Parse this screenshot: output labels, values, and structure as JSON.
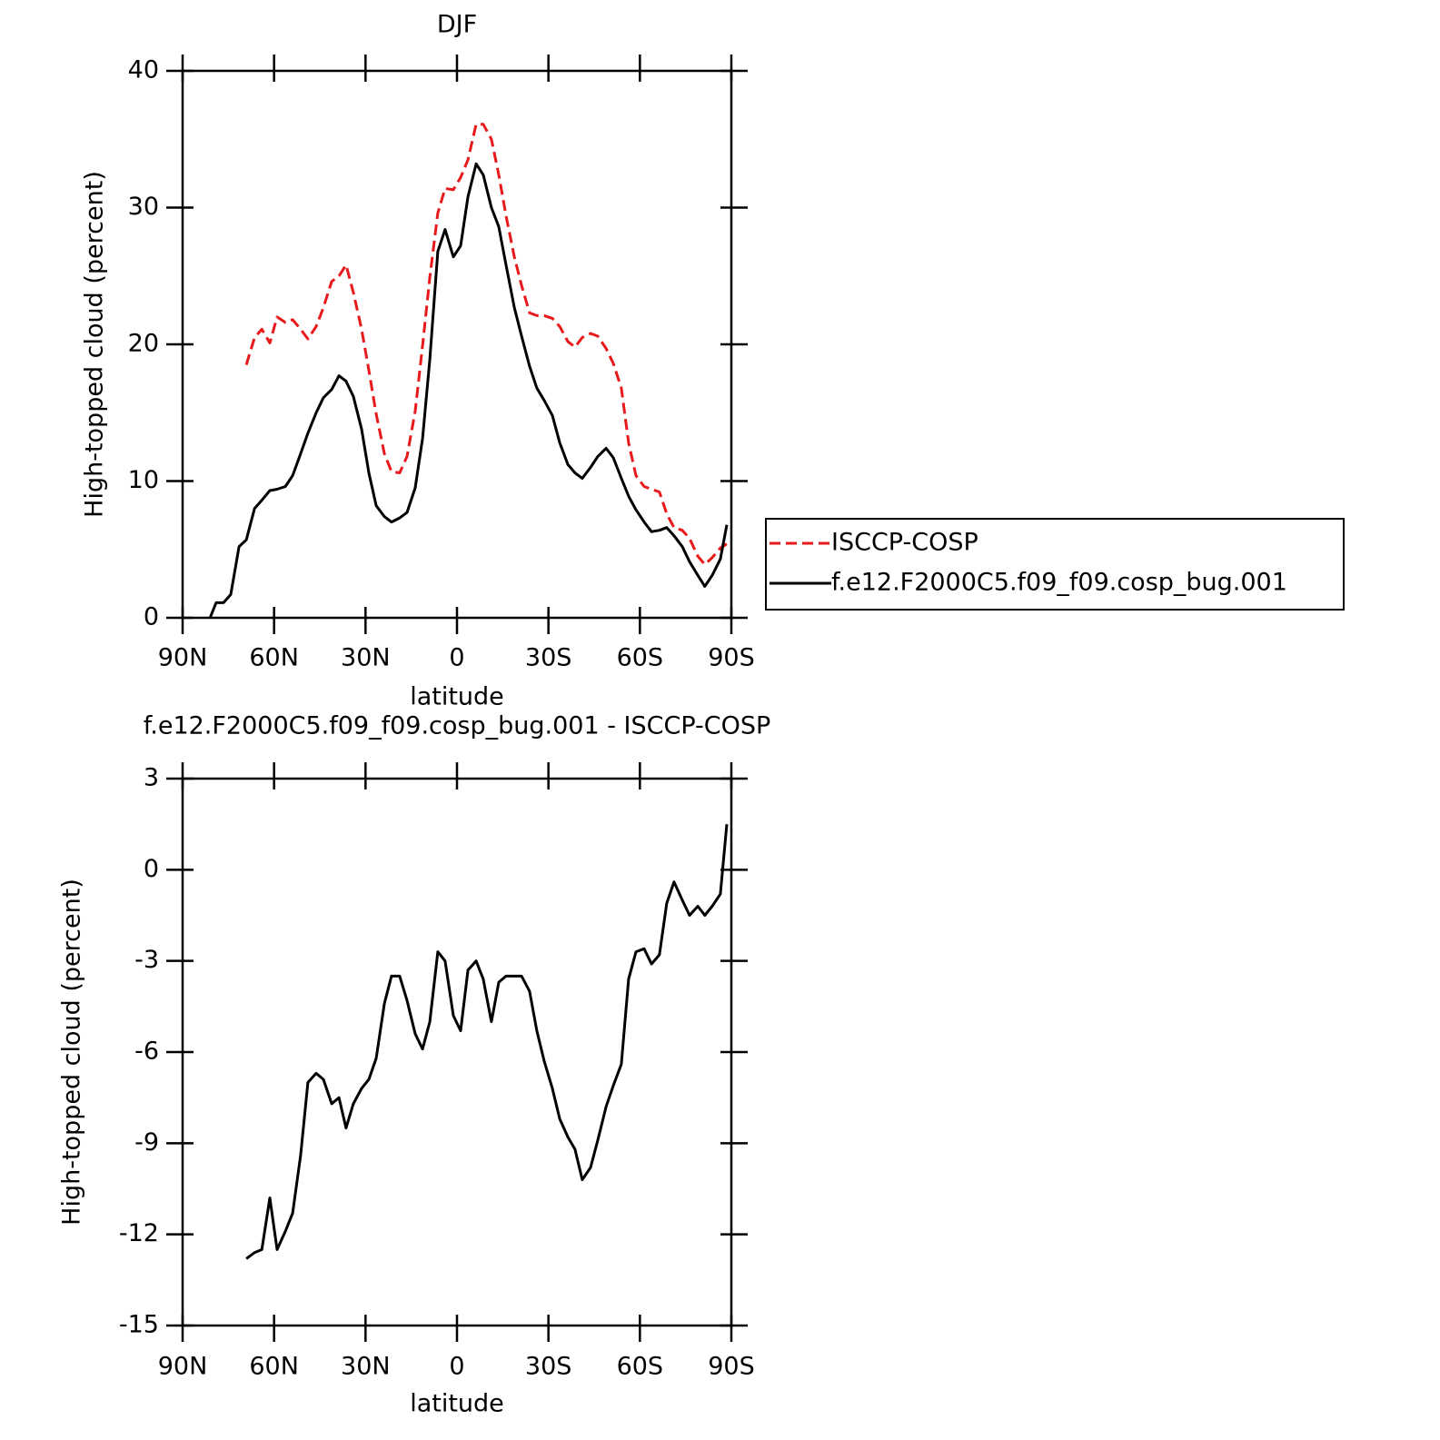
{
  "chart_data": [
    {
      "type": "line",
      "title": "DJF",
      "x_label": "latitude",
      "y_label": "High-topped cloud (percent)",
      "x": [
        81,
        79,
        76.6,
        74.2,
        71.5,
        69.1,
        66.4,
        64,
        61.4,
        59,
        56.3,
        53.9,
        51.3,
        48.9,
        46.2,
        43.8,
        41.1,
        38.7,
        36.4,
        34,
        31.3,
        28.9,
        26.5,
        23.8,
        21.5,
        18.8,
        16.4,
        13.7,
        11.3,
        8.9,
        6.3,
        3.9,
        1.2,
        -1.2,
        -3.6,
        -6.3,
        -8.6,
        -11.3,
        -13.7,
        -16.1,
        -18.8,
        -21.2,
        -23.8,
        -26.2,
        -28.6,
        -31.3,
        -33.7,
        -36.4,
        -38.7,
        -41.1,
        -43.8,
        -46.2,
        -48.9,
        -51.3,
        -53.9,
        -56.3,
        -58.7,
        -61.4,
        -63.8,
        -66.4,
        -68.8,
        -71.2,
        -73.9,
        -76.3,
        -79,
        -81.3,
        -83.7,
        -86.4,
        -88.5
      ],
      "series": [
        {
          "name": "ISCCP-COSP",
          "color": "#e8191b",
          "style": "dashed",
          "values": [
            null,
            null,
            null,
            null,
            null,
            18.5,
            20.5,
            21.1,
            20.1,
            22.0,
            21.6,
            21.8,
            21.1,
            20.4,
            21.3,
            22.7,
            24.6,
            25.0,
            25.8,
            23.8,
            21.1,
            18.1,
            14.9,
            12.0,
            10.7,
            10.6,
            11.8,
            15.1,
            19.9,
            24.9,
            29.6,
            31.4,
            31.3,
            32.2,
            33.5,
            36.1,
            36.1,
            35.0,
            32.4,
            29.4,
            26.4,
            24.3,
            22.3,
            22.1,
            22.1,
            21.9,
            21.3,
            20.2,
            19.8,
            20.5,
            20.8,
            20.6,
            19.7,
            18.6,
            16.8,
            12.8,
            10.4,
            9.6,
            9.4,
            9.2,
            7.6,
            6.6,
            6.4,
            5.8,
            4.5,
            3.9,
            4.4,
            5.1,
            5.4
          ]
        },
        {
          "name": "f.e12.F2000C5.f09_f09.cosp_bug.001",
          "color": "#000000",
          "style": "solid",
          "values": [
            0,
            1.1,
            1.1,
            1.7,
            5.2,
            5.7,
            8.0,
            8.6,
            9.3,
            9.4,
            9.6,
            10.4,
            12.0,
            13.5,
            15.0,
            16.1,
            16.7,
            17.7,
            17.3,
            16.2,
            13.8,
            10.6,
            8.2,
            7.4,
            7.0,
            7.3,
            7.7,
            9.5,
            13.1,
            18.9,
            26.8,
            28.4,
            26.4,
            27.2,
            30.8,
            33.2,
            32.4,
            30,
            28.6,
            25.8,
            22.7,
            20.6,
            18.4,
            16.8,
            15.9,
            14.8,
            12.8,
            11.2,
            10.6,
            10.2,
            11.0,
            11.8,
            12.4,
            11.7,
            10.2,
            8.9,
            7.9,
            7.0,
            6.3,
            6.4,
            6.6,
            6.0,
            5.2,
            4.1,
            3.1,
            2.3,
            3.1,
            4.3,
            6.8
          ]
        }
      ],
      "xlim": [
        90,
        -90
      ],
      "xticks": [
        {
          "value": 90,
          "label": "90N"
        },
        {
          "value": 60,
          "label": "60N"
        },
        {
          "value": 30,
          "label": "30N"
        },
        0,
        {
          "value": -30,
          "label": "30S"
        },
        {
          "value": -60,
          "label": "60S"
        },
        {
          "value": -90,
          "label": "90S"
        }
      ],
      "ylim": [
        0,
        40
      ],
      "yticks": [
        0,
        10,
        20,
        30,
        40
      ],
      "legend": "right"
    },
    {
      "type": "line",
      "title": "f.e12.F2000C5.f09_f09.cosp_bug.001 - ISCCP-COSP",
      "x_label": "latitude",
      "y_label": "High-topped cloud (percent)",
      "x": [
        69.1,
        66.4,
        64,
        61.4,
        59,
        56.3,
        53.9,
        51.3,
        48.9,
        46.2,
        43.8,
        41.1,
        38.7,
        36.4,
        34,
        31.3,
        28.9,
        26.5,
        23.8,
        21.5,
        18.8,
        16.4,
        13.7,
        11.3,
        8.9,
        6.3,
        3.9,
        1.2,
        -1.2,
        -3.6,
        -6.3,
        -8.6,
        -11.3,
        -13.7,
        -16.1,
        -18.8,
        -21.2,
        -23.8,
        -26.2,
        -28.6,
        -31.3,
        -33.7,
        -36.4,
        -38.7,
        -41.1,
        -43.8,
        -46.2,
        -48.9,
        -51.3,
        -53.9,
        -56.3,
        -58.7,
        -61.4,
        -63.8,
        -66.4,
        -68.8,
        -71.2,
        -73.9,
        -76.3,
        -79,
        -81.3,
        -83.7,
        -86.4,
        -88.5
      ],
      "series": [
        {
          "color": "#000000",
          "style": "solid",
          "values": [
            -12.8,
            -12.6,
            -12.5,
            -10.8,
            -12.5,
            -11.9,
            -11.3,
            -9.4,
            -7.0,
            -6.7,
            -6.9,
            -7.7,
            -7.5,
            -8.5,
            -7.7,
            -7.2,
            -6.9,
            -6.2,
            -4.4,
            -3.5,
            -3.5,
            -4.3,
            -5.4,
            -5.9,
            -5.0,
            -2.7,
            -3.0,
            -4.8,
            -5.3,
            -3.3,
            -3.0,
            -3.6,
            -5.0,
            -3.7,
            -3.5,
            -3.5,
            -3.5,
            -4.0,
            -5.3,
            -6.3,
            -7.2,
            -8.2,
            -8.8,
            -9.2,
            -10.2,
            -9.8,
            -8.9,
            -7.8,
            -7.1,
            -6.4,
            -3.6,
            -2.7,
            -2.6,
            -3.1,
            -2.8,
            -1.1,
            -0.4,
            -1.0,
            -1.5,
            -1.2,
            -1.5,
            -1.2,
            -0.8,
            1.5
          ]
        }
      ],
      "xlim": [
        90,
        -90
      ],
      "xticks": [
        {
          "value": 90,
          "label": "90N"
        },
        {
          "value": 60,
          "label": "60N"
        },
        {
          "value": 30,
          "label": "30N"
        },
        0,
        {
          "value": -30,
          "label": "30S"
        },
        {
          "value": -60,
          "label": "60S"
        },
        {
          "value": -90,
          "label": "90S"
        }
      ],
      "ylim": [
        -15,
        3
      ],
      "yticks": [
        -15,
        -12,
        -9,
        -6,
        -3,
        0,
        3
      ]
    }
  ]
}
